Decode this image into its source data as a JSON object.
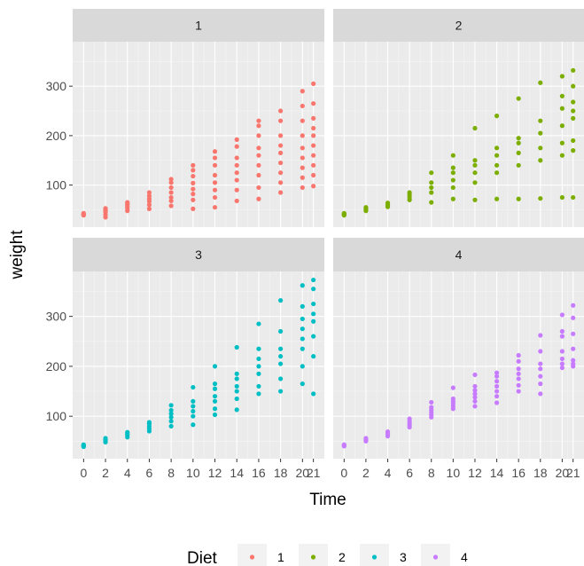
{
  "chart_data": {
    "type": "scatter",
    "facet_by": "Diet",
    "xlabel": "Time",
    "ylabel": "weight",
    "x_ticks": [
      "0",
      "2",
      "4",
      "6",
      "8",
      "10",
      "12",
      "14",
      "16",
      "18",
      "20",
      "21"
    ],
    "y_ticks": [
      "100",
      "200",
      "300"
    ],
    "xlim": [
      -1,
      22
    ],
    "ylim": [
      15,
      390
    ],
    "grid": true,
    "legend": {
      "title": "Diet",
      "position": "bottom",
      "entries": [
        "1",
        "2",
        "3",
        "4"
      ]
    },
    "colors": {
      "1": "#F8766D",
      "2": "#7CAE00",
      "3": "#00BFC4",
      "4": "#C77CFF"
    },
    "panels": [
      {
        "name": "1",
        "points": [
          [
            0,
            39
          ],
          [
            0,
            40
          ],
          [
            0,
            41
          ],
          [
            0,
            42
          ],
          [
            0,
            43
          ],
          [
            0,
            41
          ],
          [
            2,
            40
          ],
          [
            2,
            45
          ],
          [
            2,
            49
          ],
          [
            2,
            51
          ],
          [
            2,
            53
          ],
          [
            2,
            48
          ],
          [
            2,
            35
          ],
          [
            4,
            48
          ],
          [
            4,
            53
          ],
          [
            4,
            57
          ],
          [
            4,
            60
          ],
          [
            4,
            63
          ],
          [
            4,
            65
          ],
          [
            6,
            52
          ],
          [
            6,
            60
          ],
          [
            6,
            67
          ],
          [
            6,
            72
          ],
          [
            6,
            78
          ],
          [
            6,
            85
          ],
          [
            8,
            58
          ],
          [
            8,
            68
          ],
          [
            8,
            75
          ],
          [
            8,
            85
          ],
          [
            8,
            95
          ],
          [
            8,
            105
          ],
          [
            8,
            112
          ],
          [
            10,
            52
          ],
          [
            10,
            70
          ],
          [
            10,
            82
          ],
          [
            10,
            92
          ],
          [
            10,
            104
          ],
          [
            10,
            118
          ],
          [
            10,
            130
          ],
          [
            10,
            140
          ],
          [
            12,
            55
          ],
          [
            12,
            75
          ],
          [
            12,
            90
          ],
          [
            12,
            105
          ],
          [
            12,
            120
          ],
          [
            12,
            140
          ],
          [
            12,
            155
          ],
          [
            12,
            168
          ],
          [
            14,
            68
          ],
          [
            14,
            90
          ],
          [
            14,
            110
          ],
          [
            14,
            125
          ],
          [
            14,
            140
          ],
          [
            14,
            155
          ],
          [
            14,
            178
          ],
          [
            14,
            192
          ],
          [
            16,
            72
          ],
          [
            16,
            95
          ],
          [
            16,
            120
          ],
          [
            16,
            140
          ],
          [
            16,
            160
          ],
          [
            16,
            175
          ],
          [
            16,
            200
          ],
          [
            16,
            220
          ],
          [
            16,
            230
          ],
          [
            18,
            85
          ],
          [
            18,
            105
          ],
          [
            18,
            125
          ],
          [
            18,
            145
          ],
          [
            18,
            165
          ],
          [
            18,
            180
          ],
          [
            18,
            200
          ],
          [
            18,
            230
          ],
          [
            18,
            250
          ],
          [
            20,
            95
          ],
          [
            20,
            115
          ],
          [
            20,
            135
          ],
          [
            20,
            155
          ],
          [
            20,
            175
          ],
          [
            20,
            200
          ],
          [
            20,
            230
          ],
          [
            20,
            260
          ],
          [
            20,
            290
          ],
          [
            21,
            98
          ],
          [
            21,
            120
          ],
          [
            21,
            140
          ],
          [
            21,
            160
          ],
          [
            21,
            180
          ],
          [
            21,
            200
          ],
          [
            21,
            215
          ],
          [
            21,
            235
          ],
          [
            21,
            265
          ],
          [
            21,
            305
          ]
        ]
      },
      {
        "name": "2",
        "points": [
          [
            0,
            39
          ],
          [
            0,
            40
          ],
          [
            0,
            41
          ],
          [
            0,
            42
          ],
          [
            0,
            43
          ],
          [
            2,
            48
          ],
          [
            2,
            50
          ],
          [
            2,
            52
          ],
          [
            2,
            55
          ],
          [
            4,
            56
          ],
          [
            4,
            59
          ],
          [
            4,
            62
          ],
          [
            4,
            64
          ],
          [
            6,
            70
          ],
          [
            6,
            75
          ],
          [
            6,
            80
          ],
          [
            6,
            85
          ],
          [
            8,
            65
          ],
          [
            8,
            85
          ],
          [
            8,
            95
          ],
          [
            8,
            105
          ],
          [
            8,
            125
          ],
          [
            10,
            72
          ],
          [
            10,
            95
          ],
          [
            10,
            110
          ],
          [
            10,
            125
          ],
          [
            10,
            135
          ],
          [
            10,
            160
          ],
          [
            12,
            70
          ],
          [
            12,
            105
          ],
          [
            12,
            125
          ],
          [
            12,
            140
          ],
          [
            12,
            150
          ],
          [
            12,
            215
          ],
          [
            14,
            72
          ],
          [
            14,
            125
          ],
          [
            14,
            140
          ],
          [
            14,
            160
          ],
          [
            14,
            175
          ],
          [
            14,
            240
          ],
          [
            16,
            72
          ],
          [
            16,
            140
          ],
          [
            16,
            165
          ],
          [
            16,
            185
          ],
          [
            16,
            195
          ],
          [
            16,
            275
          ],
          [
            18,
            73
          ],
          [
            18,
            150
          ],
          [
            18,
            175
          ],
          [
            18,
            205
          ],
          [
            18,
            230
          ],
          [
            18,
            307
          ],
          [
            20,
            75
          ],
          [
            20,
            160
          ],
          [
            20,
            185
          ],
          [
            20,
            220
          ],
          [
            20,
            255
          ],
          [
            20,
            280
          ],
          [
            20,
            320
          ],
          [
            21,
            75
          ],
          [
            21,
            170
          ],
          [
            21,
            190
          ],
          [
            21,
            235
          ],
          [
            21,
            250
          ],
          [
            21,
            268
          ],
          [
            21,
            300
          ],
          [
            21,
            332
          ]
        ]
      },
      {
        "name": "3",
        "points": [
          [
            0,
            39
          ],
          [
            0,
            40
          ],
          [
            0,
            41
          ],
          [
            0,
            42
          ],
          [
            0,
            43
          ],
          [
            2,
            48
          ],
          [
            2,
            50
          ],
          [
            2,
            53
          ],
          [
            2,
            56
          ],
          [
            4,
            58
          ],
          [
            4,
            62
          ],
          [
            4,
            65
          ],
          [
            4,
            68
          ],
          [
            6,
            70
          ],
          [
            6,
            75
          ],
          [
            6,
            80
          ],
          [
            6,
            85
          ],
          [
            6,
            88
          ],
          [
            8,
            80
          ],
          [
            8,
            90
          ],
          [
            8,
            98
          ],
          [
            8,
            105
          ],
          [
            8,
            112
          ],
          [
            8,
            122
          ],
          [
            10,
            83
          ],
          [
            10,
            100
          ],
          [
            10,
            110
          ],
          [
            10,
            120
          ],
          [
            10,
            130
          ],
          [
            10,
            158
          ],
          [
            12,
            103
          ],
          [
            12,
            115
          ],
          [
            12,
            130
          ],
          [
            12,
            140
          ],
          [
            12,
            155
          ],
          [
            12,
            165
          ],
          [
            12,
            200
          ],
          [
            14,
            113
          ],
          [
            14,
            135
          ],
          [
            14,
            150
          ],
          [
            14,
            160
          ],
          [
            14,
            175
          ],
          [
            14,
            185
          ],
          [
            14,
            238
          ],
          [
            16,
            145
          ],
          [
            16,
            160
          ],
          [
            16,
            185
          ],
          [
            16,
            200
          ],
          [
            16,
            215
          ],
          [
            16,
            235
          ],
          [
            16,
            285
          ],
          [
            18,
            150
          ],
          [
            18,
            175
          ],
          [
            18,
            205
          ],
          [
            18,
            220
          ],
          [
            18,
            235
          ],
          [
            18,
            270
          ],
          [
            18,
            332
          ],
          [
            20,
            165
          ],
          [
            20,
            200
          ],
          [
            20,
            235
          ],
          [
            20,
            255
          ],
          [
            20,
            275
          ],
          [
            20,
            295
          ],
          [
            20,
            320
          ],
          [
            20,
            362
          ],
          [
            21,
            145
          ],
          [
            21,
            220
          ],
          [
            21,
            260
          ],
          [
            21,
            290
          ],
          [
            21,
            305
          ],
          [
            21,
            325
          ],
          [
            21,
            355
          ],
          [
            21,
            373
          ]
        ]
      },
      {
        "name": "4",
        "points": [
          [
            0,
            40
          ],
          [
            0,
            41
          ],
          [
            0,
            42
          ],
          [
            0,
            43
          ],
          [
            2,
            50
          ],
          [
            2,
            52
          ],
          [
            2,
            54
          ],
          [
            2,
            56
          ],
          [
            4,
            60
          ],
          [
            4,
            63
          ],
          [
            4,
            66
          ],
          [
            4,
            69
          ],
          [
            6,
            78
          ],
          [
            6,
            82
          ],
          [
            6,
            86
          ],
          [
            6,
            90
          ],
          [
            6,
            95
          ],
          [
            8,
            98
          ],
          [
            8,
            103
          ],
          [
            8,
            108
          ],
          [
            8,
            113
          ],
          [
            8,
            118
          ],
          [
            8,
            128
          ],
          [
            10,
            115
          ],
          [
            10,
            120
          ],
          [
            10,
            125
          ],
          [
            10,
            130
          ],
          [
            10,
            135
          ],
          [
            10,
            157
          ],
          [
            12,
            120
          ],
          [
            12,
            130
          ],
          [
            12,
            138
          ],
          [
            12,
            145
          ],
          [
            12,
            152
          ],
          [
            12,
            160
          ],
          [
            12,
            183
          ],
          [
            14,
            127
          ],
          [
            14,
            140
          ],
          [
            14,
            150
          ],
          [
            14,
            160
          ],
          [
            14,
            170
          ],
          [
            14,
            180
          ],
          [
            14,
            187
          ],
          [
            16,
            150
          ],
          [
            16,
            162
          ],
          [
            16,
            175
          ],
          [
            16,
            185
          ],
          [
            16,
            195
          ],
          [
            16,
            210
          ],
          [
            16,
            222
          ],
          [
            18,
            145
          ],
          [
            18,
            165
          ],
          [
            18,
            180
          ],
          [
            18,
            195
          ],
          [
            18,
            205
          ],
          [
            18,
            230
          ],
          [
            18,
            262
          ],
          [
            20,
            197
          ],
          [
            20,
            205
          ],
          [
            20,
            215
          ],
          [
            20,
            230
          ],
          [
            20,
            260
          ],
          [
            20,
            270
          ],
          [
            20,
            303
          ],
          [
            21,
            200
          ],
          [
            21,
            205
          ],
          [
            21,
            212
          ],
          [
            21,
            235
          ],
          [
            21,
            265
          ],
          [
            21,
            297
          ],
          [
            21,
            322
          ]
        ]
      }
    ]
  }
}
